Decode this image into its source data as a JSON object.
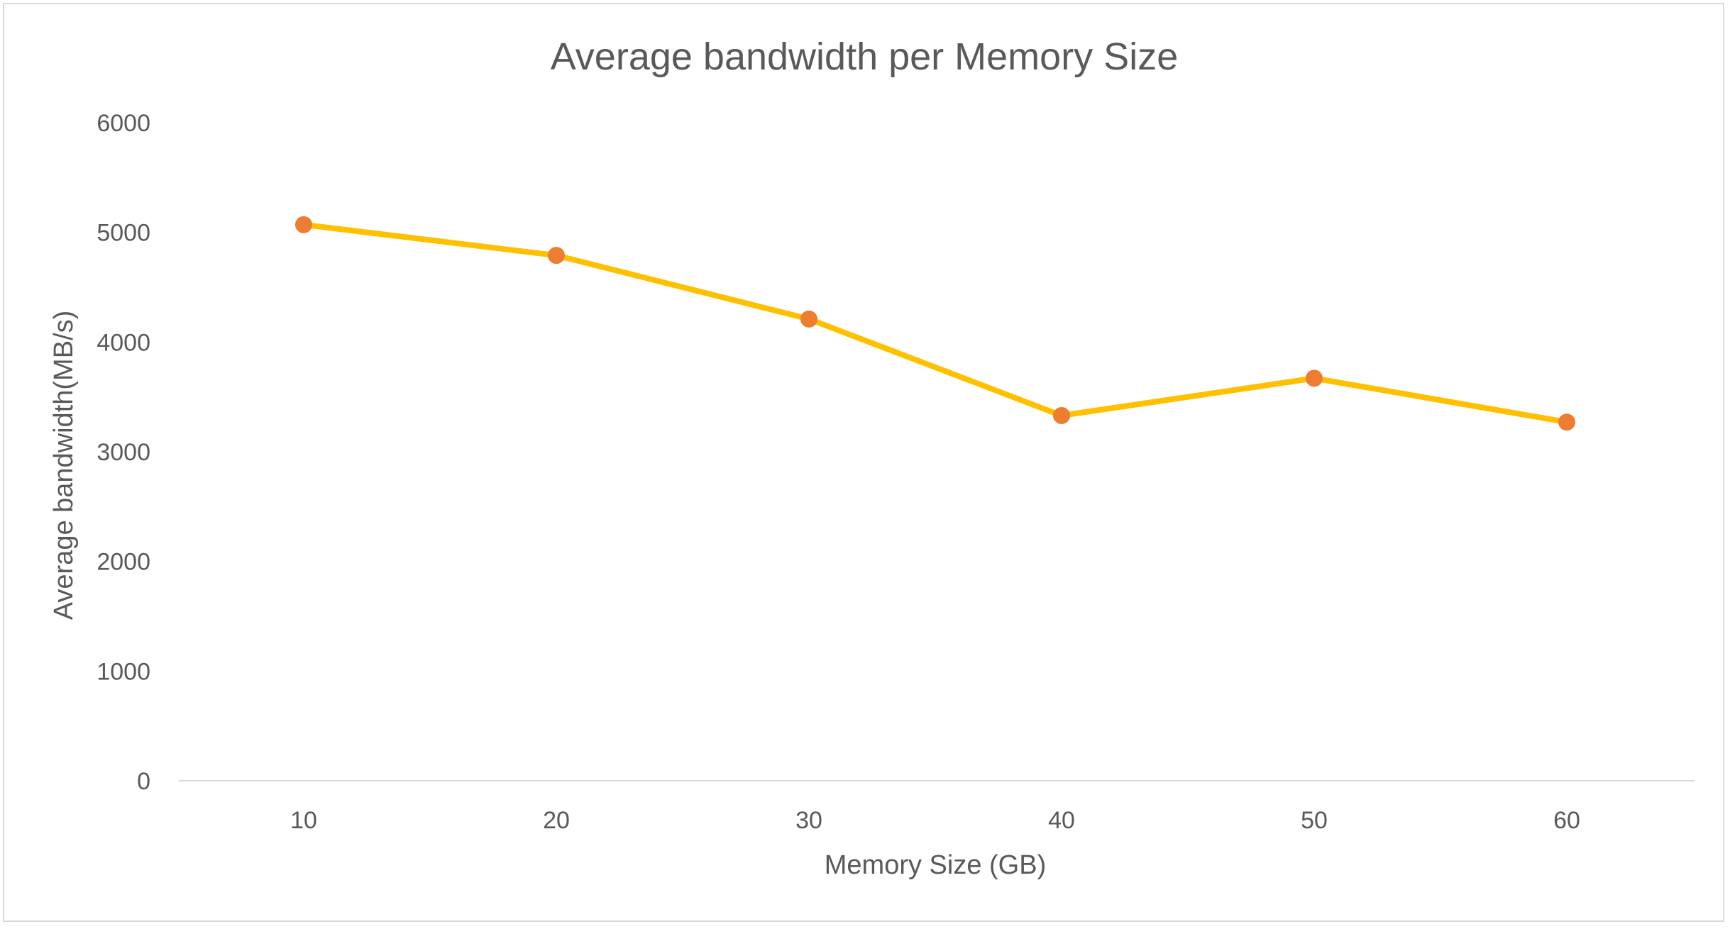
{
  "chart_data": {
    "type": "line",
    "title": "Average bandwidth per Memory Size",
    "xlabel": "Memory Size (GB)",
    "ylabel": "Average bandwidth(MB/s)",
    "categories": [
      "10",
      "20",
      "30",
      "40",
      "50",
      "60"
    ],
    "series": [
      {
        "values": [
          5070,
          4790,
          4210,
          3330,
          3670,
          3270
        ]
      }
    ],
    "y_ticks": [
      "0",
      "1000",
      "2000",
      "3000",
      "4000",
      "5000",
      "6000"
    ],
    "ylim": [
      0,
      6000
    ],
    "grid": false,
    "legend": "none",
    "colors": {
      "line": "#FFC000",
      "marker": "#ED7D31",
      "axis": "#d9d9d9",
      "text": "#595959"
    }
  }
}
